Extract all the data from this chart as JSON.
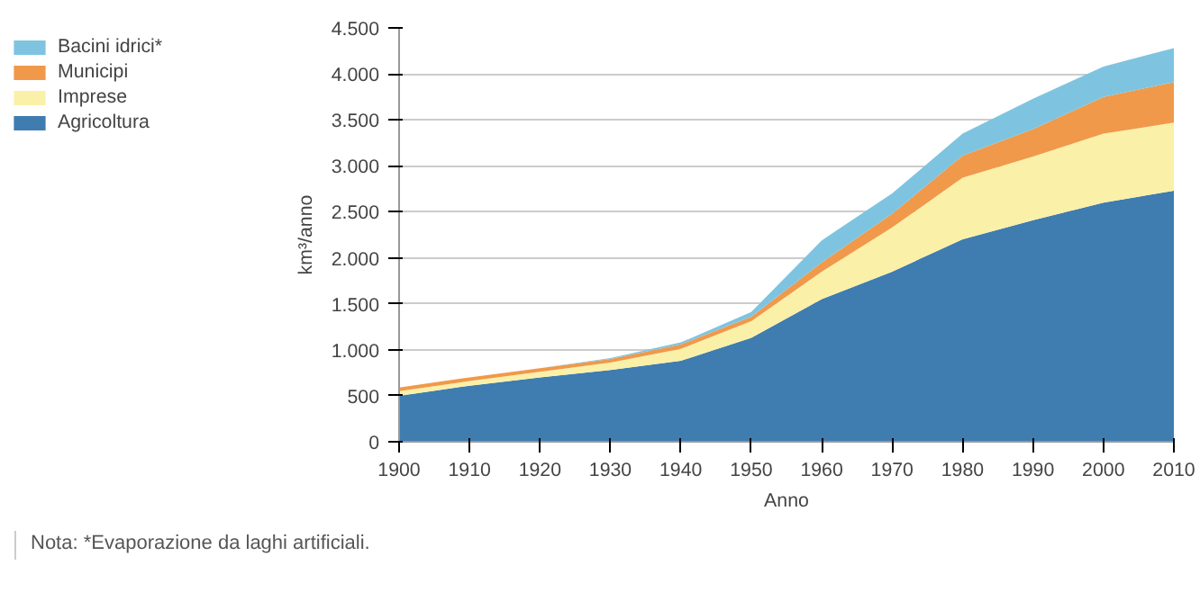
{
  "chart_data": {
    "type": "area",
    "stacked": true,
    "xlabel": "Anno",
    "ylabel": "km³/anno",
    "x": [
      1900,
      1910,
      1920,
      1930,
      1940,
      1950,
      1960,
      1970,
      1980,
      1990,
      2000,
      2010
    ],
    "series": [
      {
        "name": "Agricoltura",
        "color": "#3f7cb0",
        "values": [
          500,
          610,
          700,
          780,
          880,
          1130,
          1550,
          1850,
          2200,
          2410,
          2600,
          2730
        ]
      },
      {
        "name": "Imprese",
        "color": "#fbf0a8",
        "values": [
          50,
          50,
          60,
          80,
          130,
          180,
          300,
          480,
          670,
          690,
          750,
          740
        ]
      },
      {
        "name": "Municipi",
        "color": "#f0994a",
        "values": [
          40,
          40,
          40,
          40,
          50,
          50,
          100,
          150,
          240,
          300,
          400,
          440
        ]
      },
      {
        "name": "Bacini idrici*",
        "color": "#7ec4e0",
        "values": [
          0,
          0,
          0,
          10,
          20,
          50,
          240,
          220,
          240,
          330,
          330,
          370
        ]
      }
    ],
    "xlim": [
      1900,
      2010
    ],
    "ylim": [
      0,
      4500
    ],
    "xticks": [
      1900,
      1910,
      1920,
      1930,
      1940,
      1950,
      1960,
      1970,
      1980,
      1990,
      2000,
      2010
    ],
    "yticks": [
      0,
      500,
      {
        "value": 1000,
        "label": "1.000"
      },
      {
        "value": 1500,
        "label": "1.500"
      },
      {
        "value": 2000,
        "label": "2.000"
      },
      {
        "value": 2500,
        "label": "2.500"
      },
      {
        "value": 3000,
        "label": "3.000"
      },
      {
        "value": 3500,
        "label": "3.500"
      },
      {
        "value": 4000,
        "label": "4.000"
      },
      {
        "value": 4500,
        "label": "4.500"
      }
    ],
    "grid": "y",
    "legend": "left",
    "annotations": [
      "Nota: *Evaporazione da laghi artificiali."
    ]
  }
}
